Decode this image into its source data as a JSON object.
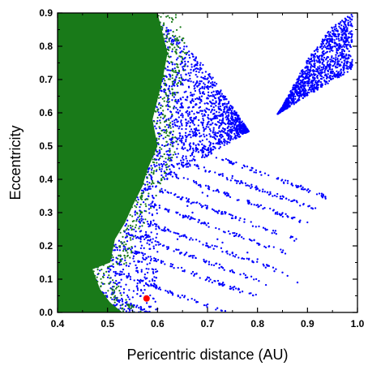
{
  "chart_data": {
    "type": "scatter",
    "xlabel": "Pericentric distance (AU)",
    "ylabel": "Eccentricity",
    "xlim": [
      0.4,
      1.0
    ],
    "ylim": [
      0.0,
      0.9
    ],
    "x_ticks": [
      0.4,
      0.5,
      0.6,
      0.7,
      0.8,
      0.9,
      1.0
    ],
    "y_ticks": [
      0.0,
      0.1,
      0.2,
      0.3,
      0.4,
      0.5,
      0.6,
      0.7,
      0.8,
      0.9
    ],
    "x_tick_labels": [
      "0.4",
      "0.5",
      "0.6",
      "0.7",
      "0.8",
      "0.9",
      "1.0"
    ],
    "y_tick_labels": [
      "0.0",
      "0.1",
      "0.2",
      "0.3",
      "0.4",
      "0.5",
      "0.6",
      "0.7",
      "0.8",
      "0.9"
    ],
    "grid": false,
    "legend": "none",
    "series": [
      {
        "color": "#0000ff",
        "description": "dense scatter of orbits; upper envelope rises from e=0.9 near q=0.59 AU; lower region broken into diagonal streaks",
        "envelope": [
          {
            "q": 0.59,
            "e": 0.9
          },
          {
            "q": 0.65,
            "e": 0.82
          },
          {
            "q": 0.7,
            "e": 0.73
          },
          {
            "q": 0.75,
            "e": 0.62
          },
          {
            "q": 0.78,
            "e": 0.55
          },
          {
            "q": 0.8,
            "e": 0.5
          },
          {
            "q": 0.85,
            "e": 0.62
          },
          {
            "q": 0.9,
            "e": 0.76
          },
          {
            "q": 0.95,
            "e": 0.86
          },
          {
            "q": 0.98,
            "e": 0.89
          }
        ],
        "streak_origins": [
          {
            "q": 0.48,
            "e": 0.06
          },
          {
            "q": 0.5,
            "e": 0.13
          },
          {
            "q": 0.52,
            "e": 0.2
          },
          {
            "q": 0.54,
            "e": 0.24
          },
          {
            "q": 0.56,
            "e": 0.28
          },
          {
            "q": 0.58,
            "e": 0.33
          },
          {
            "q": 0.6,
            "e": 0.37
          },
          {
            "q": 0.62,
            "e": 0.42
          },
          {
            "q": 0.64,
            "e": 0.46
          },
          {
            "q": 0.66,
            "e": 0.5
          }
        ],
        "isolated_points": [
          {
            "q": 0.75,
            "e": 0.41
          },
          {
            "q": 0.69,
            "e": 0.36
          },
          {
            "q": 0.7,
            "e": 0.35
          },
          {
            "q": 0.66,
            "e": 0.32
          },
          {
            "q": 0.67,
            "e": 0.3
          },
          {
            "q": 0.64,
            "e": 0.22
          },
          {
            "q": 0.72,
            "e": 0.22
          },
          {
            "q": 0.73,
            "e": 0.21
          },
          {
            "q": 0.75,
            "e": 0.18
          },
          {
            "q": 0.78,
            "e": 0.18
          },
          {
            "q": 0.8,
            "e": 0.16
          },
          {
            "q": 0.82,
            "e": 0.14
          },
          {
            "q": 0.85,
            "e": 0.12
          },
          {
            "q": 0.86,
            "e": 0.11
          },
          {
            "q": 0.88,
            "e": 0.09
          }
        ]
      },
      {
        "color": "#197a19",
        "description": "dense region filling low pericentric distances; right edge jagged with resonance teeth",
        "edge": [
          {
            "q": 0.53,
            "e": 0.0
          },
          {
            "q": 0.505,
            "e": 0.03
          },
          {
            "q": 0.485,
            "e": 0.07
          },
          {
            "q": 0.47,
            "e": 0.13
          },
          {
            "q": 0.505,
            "e": 0.15
          },
          {
            "q": 0.515,
            "e": 0.22
          },
          {
            "q": 0.535,
            "e": 0.27
          },
          {
            "q": 0.55,
            "e": 0.32
          },
          {
            "q": 0.57,
            "e": 0.38
          },
          {
            "q": 0.58,
            "e": 0.43
          },
          {
            "q": 0.6,
            "e": 0.5
          },
          {
            "q": 0.59,
            "e": 0.58
          },
          {
            "q": 0.61,
            "e": 0.7
          },
          {
            "q": 0.62,
            "e": 0.78
          },
          {
            "q": 0.6,
            "e": 0.9
          }
        ]
      },
      {
        "color": "#ff0000",
        "points": [
          {
            "q": 0.578,
            "e": 0.042
          }
        ]
      }
    ]
  }
}
